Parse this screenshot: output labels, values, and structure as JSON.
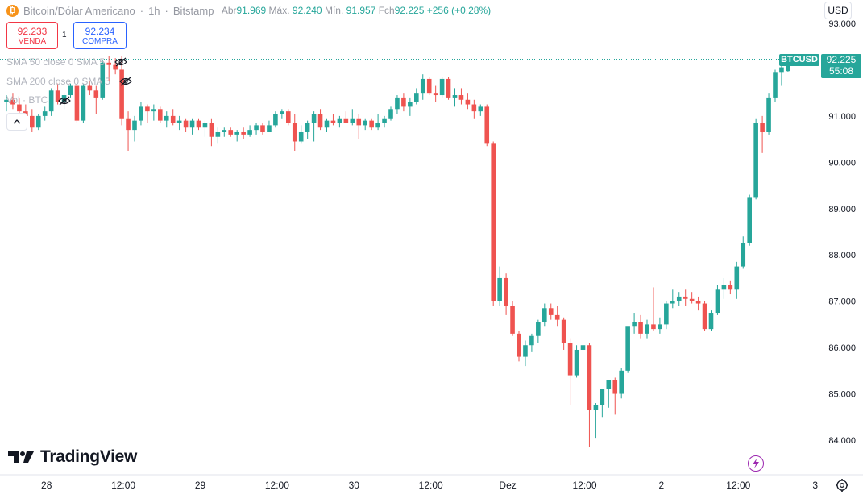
{
  "header": {
    "coin_glyph": "₿",
    "symbol": "Bitcoin/Dólar Americano",
    "sep": "·",
    "interval": "1h",
    "exchange": "Bitstamp",
    "open_label": "Abr",
    "open": "91.969",
    "high_label": "Máx.",
    "high": "92.240",
    "low_label": "Mín.",
    "low": "91.957",
    "close_label": "Fch",
    "close": "92.225",
    "change": "+256 (+0,28%)"
  },
  "currency": "USD",
  "quotes": {
    "sell_price": "92.233",
    "sell_label": "VENDA",
    "spread": "1",
    "buy_price": "92.234",
    "buy_label": "COMPRA"
  },
  "indicators": [
    {
      "label": "SMA 50 close 0 SMA 5"
    },
    {
      "label": "SMA 200 close 0 SMA 5"
    },
    {
      "label": "Vol · BTC"
    }
  ],
  "last_price_tag": {
    "symbol": "BTCUSD",
    "price": "92.225",
    "countdown": "55:08"
  },
  "brand": "TradingView",
  "colors": {
    "up": "#26a69a",
    "down": "#ef5350",
    "text_muted": "#9598a1"
  },
  "chart_data": {
    "type": "candlestick",
    "title": "Bitcoin/Dólar Americano · 1h · Bitstamp",
    "ylim": [
      83700,
      93300
    ],
    "y_ticks": [
      {
        "value": 93000,
        "label": "93.000"
      },
      {
        "value": 92000,
        "label": "92.000"
      },
      {
        "value": 91000,
        "label": "91.000"
      },
      {
        "value": 90000,
        "label": "90.000"
      },
      {
        "value": 89000,
        "label": "89.000"
      },
      {
        "value": 88000,
        "label": "88.000"
      },
      {
        "value": 87000,
        "label": "87.000"
      },
      {
        "value": 86000,
        "label": "86.000"
      },
      {
        "value": 85000,
        "label": "85.000"
      },
      {
        "value": 84000,
        "label": "84.000"
      }
    ],
    "x_ticks": [
      {
        "index": 6,
        "label": "28"
      },
      {
        "index": 18,
        "label": "12:00"
      },
      {
        "index": 30,
        "label": "29"
      },
      {
        "index": 42,
        "label": "12:00"
      },
      {
        "index": 54,
        "label": "30"
      },
      {
        "index": 66,
        "label": "12:00"
      },
      {
        "index": 78,
        "label": "Dez"
      },
      {
        "index": 90,
        "label": "12:00"
      },
      {
        "index": 102,
        "label": "2"
      },
      {
        "index": 114,
        "label": "12:00"
      },
      {
        "index": 126,
        "label": "3"
      }
    ],
    "candles": [
      {
        "o": 91300,
        "h": 91450,
        "l": 91100,
        "c": 91350
      },
      {
        "o": 91350,
        "h": 91500,
        "l": 91150,
        "c": 91250
      },
      {
        "o": 91250,
        "h": 91380,
        "l": 91020,
        "c": 91100
      },
      {
        "o": 91100,
        "h": 91250,
        "l": 90850,
        "c": 91000
      },
      {
        "o": 91000,
        "h": 91150,
        "l": 90650,
        "c": 90750
      },
      {
        "o": 90750,
        "h": 91050,
        "l": 90700,
        "c": 91000
      },
      {
        "o": 91000,
        "h": 91200,
        "l": 90900,
        "c": 91100
      },
      {
        "o": 91100,
        "h": 91600,
        "l": 91000,
        "c": 91550
      },
      {
        "o": 91550,
        "h": 91700,
        "l": 91250,
        "c": 91300
      },
      {
        "o": 91300,
        "h": 91500,
        "l": 91150,
        "c": 91450
      },
      {
        "o": 91450,
        "h": 91700,
        "l": 91400,
        "c": 91650
      },
      {
        "o": 91650,
        "h": 91700,
        "l": 90850,
        "c": 90900
      },
      {
        "o": 90900,
        "h": 91700,
        "l": 90850,
        "c": 91650
      },
      {
        "o": 91650,
        "h": 91750,
        "l": 91450,
        "c": 91550
      },
      {
        "o": 91550,
        "h": 91650,
        "l": 91050,
        "c": 91400
      },
      {
        "o": 91400,
        "h": 92200,
        "l": 91350,
        "c": 92150
      },
      {
        "o": 92150,
        "h": 92300,
        "l": 91750,
        "c": 92100
      },
      {
        "o": 92100,
        "h": 92250,
        "l": 91900,
        "c": 92000
      },
      {
        "o": 92000,
        "h": 92300,
        "l": 90800,
        "c": 90950
      },
      {
        "o": 90950,
        "h": 91100,
        "l": 90250,
        "c": 90700
      },
      {
        "o": 90700,
        "h": 91000,
        "l": 90450,
        "c": 90900
      },
      {
        "o": 90900,
        "h": 91300,
        "l": 90800,
        "c": 91200
      },
      {
        "o": 91200,
        "h": 91250,
        "l": 90850,
        "c": 91100
      },
      {
        "o": 91100,
        "h": 91250,
        "l": 90900,
        "c": 91150
      },
      {
        "o": 91150,
        "h": 91200,
        "l": 90850,
        "c": 90900
      },
      {
        "o": 90900,
        "h": 91100,
        "l": 90750,
        "c": 91000
      },
      {
        "o": 91000,
        "h": 91150,
        "l": 90800,
        "c": 90850
      },
      {
        "o": 90850,
        "h": 91000,
        "l": 90700,
        "c": 90900
      },
      {
        "o": 90900,
        "h": 90950,
        "l": 90650,
        "c": 90750
      },
      {
        "o": 90750,
        "h": 90950,
        "l": 90600,
        "c": 90900
      },
      {
        "o": 90900,
        "h": 90950,
        "l": 90700,
        "c": 90750
      },
      {
        "o": 90750,
        "h": 90900,
        "l": 90550,
        "c": 90850
      },
      {
        "o": 90850,
        "h": 90950,
        "l": 90350,
        "c": 90550
      },
      {
        "o": 90550,
        "h": 90750,
        "l": 90400,
        "c": 90650
      },
      {
        "o": 90650,
        "h": 90750,
        "l": 90550,
        "c": 90700
      },
      {
        "o": 90700,
        "h": 90750,
        "l": 90550,
        "c": 90600
      },
      {
        "o": 90600,
        "h": 90700,
        "l": 90450,
        "c": 90650
      },
      {
        "o": 90650,
        "h": 90750,
        "l": 90500,
        "c": 90600
      },
      {
        "o": 90600,
        "h": 90800,
        "l": 90550,
        "c": 90700
      },
      {
        "o": 90700,
        "h": 90850,
        "l": 90600,
        "c": 90800
      },
      {
        "o": 90800,
        "h": 90850,
        "l": 90600,
        "c": 90650
      },
      {
        "o": 90650,
        "h": 90900,
        "l": 90650,
        "c": 90800
      },
      {
        "o": 90800,
        "h": 91100,
        "l": 90750,
        "c": 91050
      },
      {
        "o": 91050,
        "h": 91150,
        "l": 90950,
        "c": 91100
      },
      {
        "o": 91100,
        "h": 91150,
        "l": 90800,
        "c": 90850
      },
      {
        "o": 90850,
        "h": 91050,
        "l": 90250,
        "c": 90450
      },
      {
        "o": 90450,
        "h": 90800,
        "l": 90400,
        "c": 90650
      },
      {
        "o": 90650,
        "h": 90900,
        "l": 90500,
        "c": 90850
      },
      {
        "o": 90850,
        "h": 91100,
        "l": 90450,
        "c": 91050
      },
      {
        "o": 91050,
        "h": 91150,
        "l": 90700,
        "c": 90750
      },
      {
        "o": 90750,
        "h": 90950,
        "l": 90650,
        "c": 90900
      },
      {
        "o": 90900,
        "h": 91050,
        "l": 90800,
        "c": 90850
      },
      {
        "o": 90850,
        "h": 91000,
        "l": 90750,
        "c": 90950
      },
      {
        "o": 90950,
        "h": 91100,
        "l": 90850,
        "c": 90850
      },
      {
        "o": 90850,
        "h": 91150,
        "l": 90800,
        "c": 90950
      },
      {
        "o": 90950,
        "h": 91050,
        "l": 90500,
        "c": 90800
      },
      {
        "o": 90800,
        "h": 90950,
        "l": 90700,
        "c": 90900
      },
      {
        "o": 90900,
        "h": 90950,
        "l": 90700,
        "c": 90750
      },
      {
        "o": 90750,
        "h": 91050,
        "l": 90700,
        "c": 90850
      },
      {
        "o": 90850,
        "h": 91000,
        "l": 90750,
        "c": 90950
      },
      {
        "o": 90950,
        "h": 91200,
        "l": 90900,
        "c": 91150
      },
      {
        "o": 91150,
        "h": 91450,
        "l": 91050,
        "c": 91400
      },
      {
        "o": 91400,
        "h": 91500,
        "l": 91100,
        "c": 91200
      },
      {
        "o": 91200,
        "h": 91400,
        "l": 91000,
        "c": 91300
      },
      {
        "o": 91300,
        "h": 91600,
        "l": 91250,
        "c": 91500
      },
      {
        "o": 91500,
        "h": 91900,
        "l": 91350,
        "c": 91800
      },
      {
        "o": 91800,
        "h": 91850,
        "l": 91450,
        "c": 91500
      },
      {
        "o": 91500,
        "h": 91650,
        "l": 91300,
        "c": 91450
      },
      {
        "o": 91450,
        "h": 91850,
        "l": 91400,
        "c": 91800
      },
      {
        "o": 91800,
        "h": 91850,
        "l": 91350,
        "c": 91400
      },
      {
        "o": 91400,
        "h": 91600,
        "l": 91200,
        "c": 91450
      },
      {
        "o": 91450,
        "h": 91600,
        "l": 91250,
        "c": 91350
      },
      {
        "o": 91350,
        "h": 91500,
        "l": 91150,
        "c": 91250
      },
      {
        "o": 91250,
        "h": 91350,
        "l": 90950,
        "c": 91100
      },
      {
        "o": 91100,
        "h": 91250,
        "l": 91000,
        "c": 91200
      },
      {
        "o": 91200,
        "h": 91250,
        "l": 90350,
        "c": 90400
      },
      {
        "o": 90400,
        "h": 90450,
        "l": 86900,
        "c": 87000
      },
      {
        "o": 87000,
        "h": 87750,
        "l": 86900,
        "c": 87500
      },
      {
        "o": 87500,
        "h": 87600,
        "l": 86700,
        "c": 86900
      },
      {
        "o": 86900,
        "h": 87000,
        "l": 86250,
        "c": 86300
      },
      {
        "o": 86300,
        "h": 86350,
        "l": 85700,
        "c": 85800
      },
      {
        "o": 85800,
        "h": 86150,
        "l": 85600,
        "c": 86050
      },
      {
        "o": 86050,
        "h": 86300,
        "l": 85900,
        "c": 86250
      },
      {
        "o": 86250,
        "h": 86600,
        "l": 86100,
        "c": 86550
      },
      {
        "o": 86550,
        "h": 86950,
        "l": 86450,
        "c": 86850
      },
      {
        "o": 86850,
        "h": 86950,
        "l": 86600,
        "c": 86700
      },
      {
        "o": 86700,
        "h": 86900,
        "l": 86450,
        "c": 86600
      },
      {
        "o": 86600,
        "h": 86650,
        "l": 85950,
        "c": 86100
      },
      {
        "o": 86100,
        "h": 86200,
        "l": 84750,
        "c": 85400
      },
      {
        "o": 85400,
        "h": 86050,
        "l": 85350,
        "c": 85950
      },
      {
        "o": 85950,
        "h": 86650,
        "l": 85850,
        "c": 86050
      },
      {
        "o": 86050,
        "h": 86100,
        "l": 83850,
        "c": 84650
      },
      {
        "o": 84650,
        "h": 84800,
        "l": 84050,
        "c": 84750
      },
      {
        "o": 84750,
        "h": 85100,
        "l": 84500,
        "c": 85100
      },
      {
        "o": 85100,
        "h": 85300,
        "l": 84700,
        "c": 85300
      },
      {
        "o": 85300,
        "h": 85350,
        "l": 84550,
        "c": 85000
      },
      {
        "o": 85000,
        "h": 85550,
        "l": 84900,
        "c": 85500
      },
      {
        "o": 85500,
        "h": 86400,
        "l": 85450,
        "c": 86450
      },
      {
        "o": 86450,
        "h": 86750,
        "l": 86300,
        "c": 86550
      },
      {
        "o": 86550,
        "h": 86700,
        "l": 86200,
        "c": 86300
      },
      {
        "o": 86300,
        "h": 86600,
        "l": 86200,
        "c": 86500
      },
      {
        "o": 86500,
        "h": 87300,
        "l": 86350,
        "c": 86400
      },
      {
        "o": 86400,
        "h": 86650,
        "l": 86300,
        "c": 86500
      },
      {
        "o": 86500,
        "h": 87000,
        "l": 86400,
        "c": 86950
      },
      {
        "o": 86950,
        "h": 87250,
        "l": 86850,
        "c": 87000
      },
      {
        "o": 87000,
        "h": 87200,
        "l": 86900,
        "c": 87100
      },
      {
        "o": 87100,
        "h": 87250,
        "l": 86900,
        "c": 87050
      },
      {
        "o": 87050,
        "h": 87200,
        "l": 86950,
        "c": 87000
      },
      {
        "o": 87000,
        "h": 87100,
        "l": 86800,
        "c": 86950
      },
      {
        "o": 86950,
        "h": 87000,
        "l": 86350,
        "c": 86400
      },
      {
        "o": 86400,
        "h": 86800,
        "l": 86350,
        "c": 86750
      },
      {
        "o": 86750,
        "h": 87350,
        "l": 86700,
        "c": 87250
      },
      {
        "o": 87250,
        "h": 87500,
        "l": 87050,
        "c": 87350
      },
      {
        "o": 87350,
        "h": 87450,
        "l": 87150,
        "c": 87250
      },
      {
        "o": 87250,
        "h": 87850,
        "l": 87050,
        "c": 87750
      },
      {
        "o": 87750,
        "h": 88400,
        "l": 87700,
        "c": 88250
      },
      {
        "o": 88250,
        "h": 89300,
        "l": 88200,
        "c": 89250
      },
      {
        "o": 89250,
        "h": 90950,
        "l": 89200,
        "c": 90850
      },
      {
        "o": 90850,
        "h": 91000,
        "l": 90200,
        "c": 90650
      },
      {
        "o": 90650,
        "h": 91500,
        "l": 90600,
        "c": 91400
      },
      {
        "o": 91400,
        "h": 92000,
        "l": 91300,
        "c": 91950
      },
      {
        "o": 91950,
        "h": 92300,
        "l": 91650,
        "c": 92050
      },
      {
        "o": 91969,
        "h": 92240,
        "l": 91957,
        "c": 92225
      }
    ]
  }
}
